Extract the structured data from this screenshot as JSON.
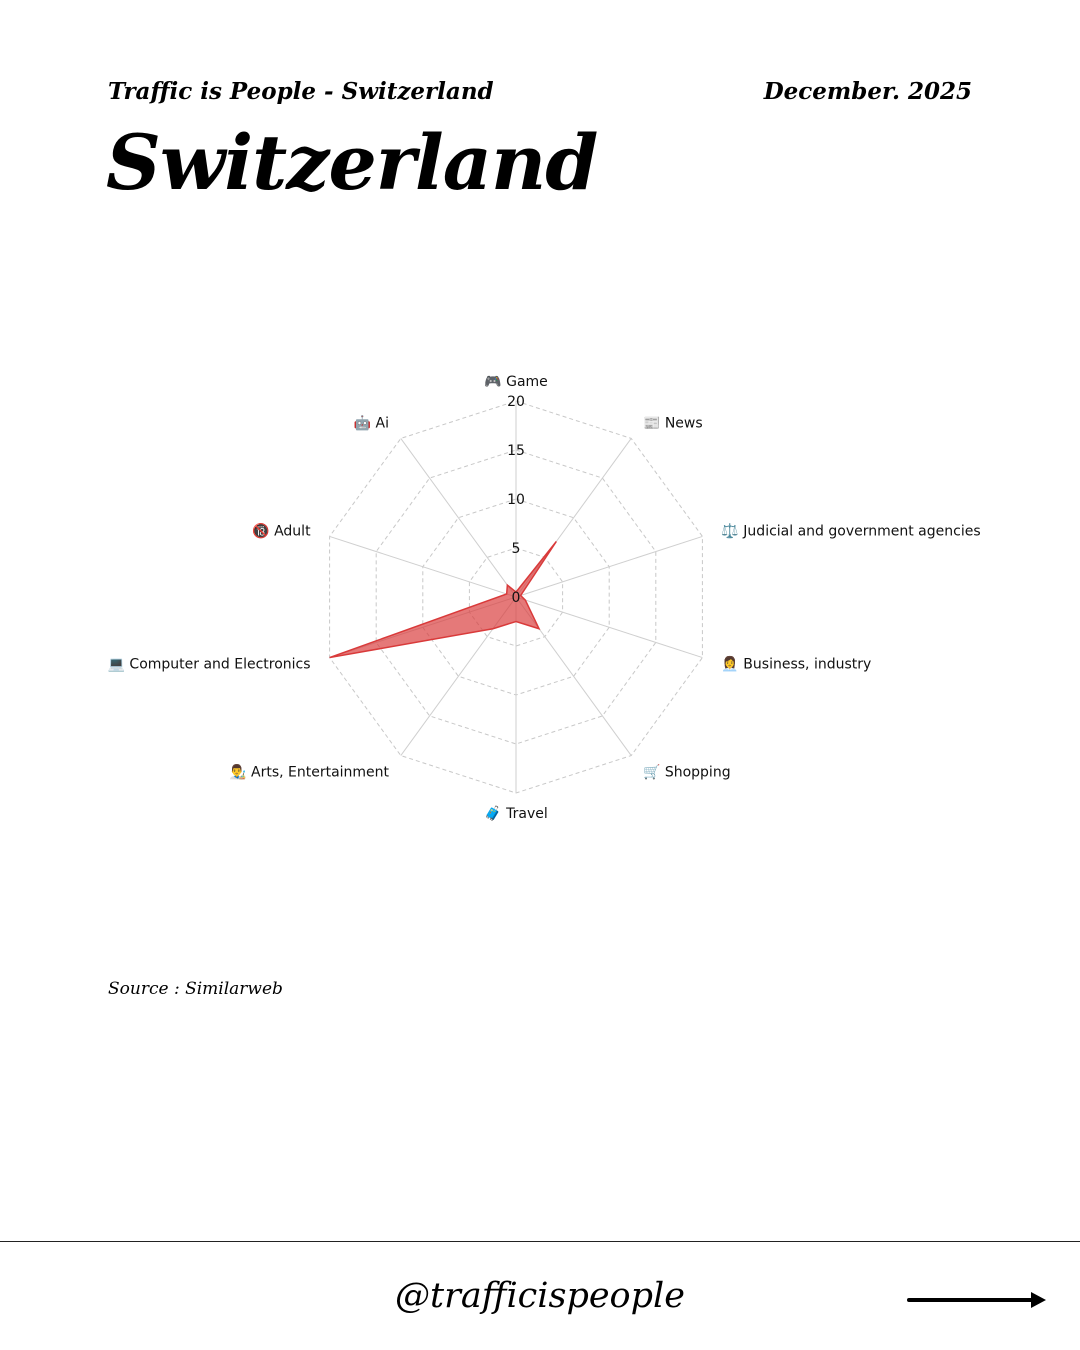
{
  "header": {
    "series_title": "Traffic is People - Switzerland",
    "date": "December. 2025"
  },
  "page_title": "Switzerland",
  "chart_data": {
    "type": "radar",
    "categories": [
      {
        "label": "Game",
        "icon": "🎮"
      },
      {
        "label": "News",
        "icon": "📰"
      },
      {
        "label": "Judicial and government agencies",
        "icon": "⚖️"
      },
      {
        "label": "Business, industry",
        "icon": "👩‍💼"
      },
      {
        "label": "Shopping",
        "icon": "🛒"
      },
      {
        "label": "Travel",
        "icon": "🧳"
      },
      {
        "label": "Arts, Entertainment",
        "icon": "👨‍🎨"
      },
      {
        "label": "Computer and Electronics",
        "icon": "💻"
      },
      {
        "label": "Adult",
        "icon": "🔞"
      },
      {
        "label": "Ai",
        "icon": "🤖"
      }
    ],
    "series": [
      {
        "values": [
          0.5,
          7,
          0.5,
          1,
          4,
          2.5,
          4,
          20,
          1,
          1.5
        ],
        "color": "#d93a3a"
      }
    ],
    "rlim": [
      0,
      20
    ],
    "rticks": [
      0,
      5,
      10,
      15,
      20
    ],
    "grid": true
  },
  "source": "Source : Similarweb",
  "footer": {
    "handle": "@trafficispeople"
  }
}
